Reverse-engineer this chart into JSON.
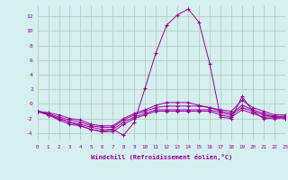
{
  "xlabel": "Windchill (Refroidissement éolien,°C)",
  "xlim": [
    0,
    23
  ],
  "ylim": [
    -5,
    13.5
  ],
  "yticks": [
    -4,
    -2,
    0,
    2,
    4,
    6,
    8,
    10,
    12
  ],
  "xticks": [
    0,
    1,
    2,
    3,
    4,
    5,
    6,
    7,
    8,
    9,
    10,
    11,
    12,
    13,
    14,
    15,
    16,
    17,
    18,
    19,
    20,
    21,
    22,
    23
  ],
  "background_color": "#d5eeee",
  "line_color": "#990099",
  "grid_color": "#aaccbb",
  "series": [
    [
      -1,
      -1.5,
      -2.0,
      -2.5,
      -3.0,
      -3.5,
      -3.8,
      -3.5,
      -4.3,
      -2.5,
      2.2,
      7.0,
      10.8,
      12.2,
      13.0,
      11.2,
      5.5,
      -1.8,
      -2.0,
      1.0,
      -1.0,
      -2.0,
      -2.0,
      -2.0
    ],
    [
      -1,
      -1.5,
      -2.2,
      -2.8,
      -3.0,
      -3.5,
      -3.8,
      -3.8,
      -2.8,
      -2.0,
      -1.5,
      -1.0,
      -1.0,
      -1.0,
      -1.0,
      -1.0,
      -1.0,
      -1.5,
      -1.8,
      -0.8,
      -1.3,
      -1.8,
      -1.8,
      -1.8
    ],
    [
      -1,
      -1.5,
      -2.0,
      -2.5,
      -2.8,
      -3.2,
      -3.5,
      -3.5,
      -2.5,
      -1.8,
      -1.3,
      -0.8,
      -0.8,
      -0.8,
      -0.8,
      -0.8,
      -0.8,
      -1.2,
      -1.5,
      -0.5,
      -1.0,
      -1.5,
      -1.8,
      -1.8
    ],
    [
      -1,
      -1.3,
      -1.8,
      -2.2,
      -2.5,
      -3.0,
      -3.2,
      -3.2,
      -2.2,
      -1.5,
      -1.0,
      -0.5,
      -0.3,
      -0.3,
      -0.3,
      -0.3,
      -0.5,
      -1.0,
      -1.3,
      -0.2,
      -0.8,
      -1.3,
      -1.7,
      -1.7
    ],
    [
      -1,
      -1.2,
      -1.5,
      -2.0,
      -2.2,
      -2.8,
      -3.0,
      -3.0,
      -2.0,
      -1.3,
      -0.8,
      -0.2,
      0.2,
      0.2,
      0.2,
      -0.2,
      -0.5,
      -0.8,
      -1.0,
      0.5,
      -0.5,
      -1.0,
      -1.5,
      -1.5
    ]
  ]
}
